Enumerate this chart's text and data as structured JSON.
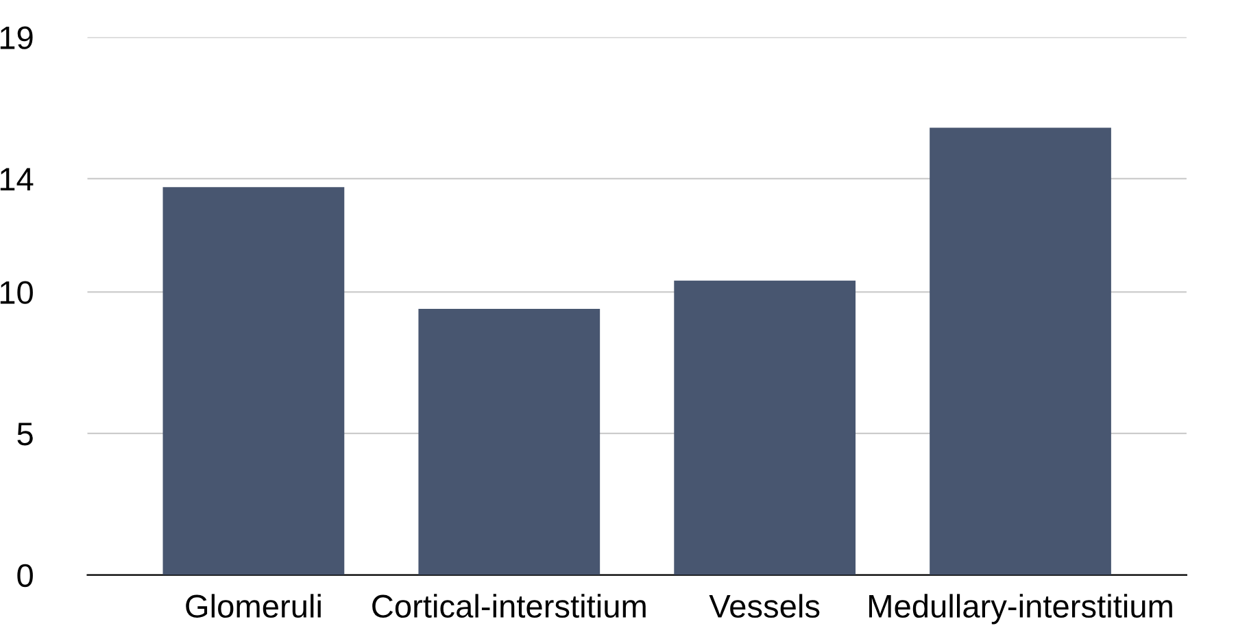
{
  "chart_data": {
    "type": "bar",
    "categories": [
      "Glomeruli",
      "Cortical-interstitium",
      "Vessels",
      "Medullary-interstitium"
    ],
    "values": [
      13.7,
      9.4,
      10.4,
      15.8
    ],
    "color": "#485670",
    "ylim": [
      0,
      19
    ],
    "yticks": [
      0,
      5,
      10,
      14,
      19
    ],
    "grid": "y",
    "legend": false
  }
}
